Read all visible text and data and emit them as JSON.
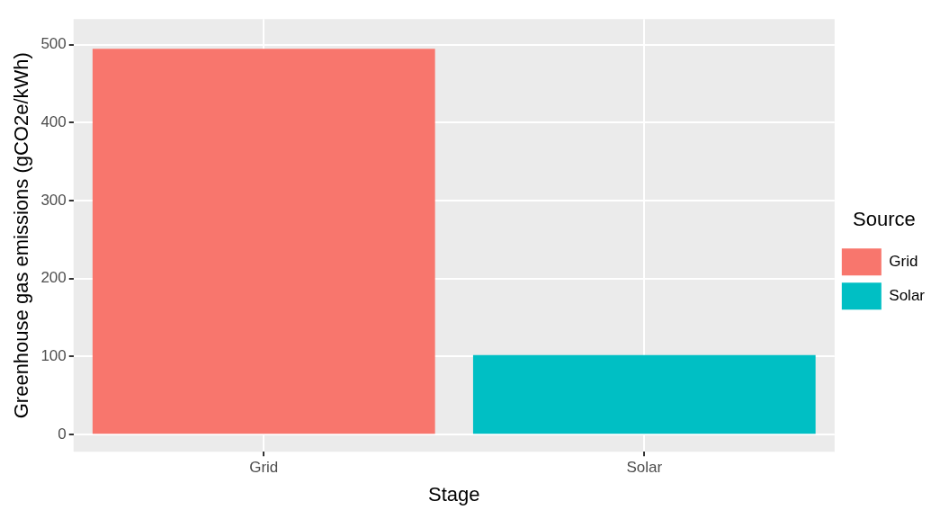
{
  "chart_data": {
    "type": "bar",
    "xlabel": "Stage",
    "ylabel": "Greenhouse gas emissions (gCO2e/kWh)",
    "legend_title": "Source",
    "categories": [
      "Grid",
      "Solar"
    ],
    "series": [
      {
        "name": "Grid",
        "color": "#f8766d",
        "values": [
          495,
          null
        ]
      },
      {
        "name": "Solar",
        "color": "#00bfc4",
        "values": [
          null,
          102
        ]
      }
    ],
    "ylim": [
      -22,
      533
    ],
    "yticks": [
      0,
      100,
      200,
      300,
      400,
      500
    ],
    "grid": true,
    "legend": "right"
  }
}
